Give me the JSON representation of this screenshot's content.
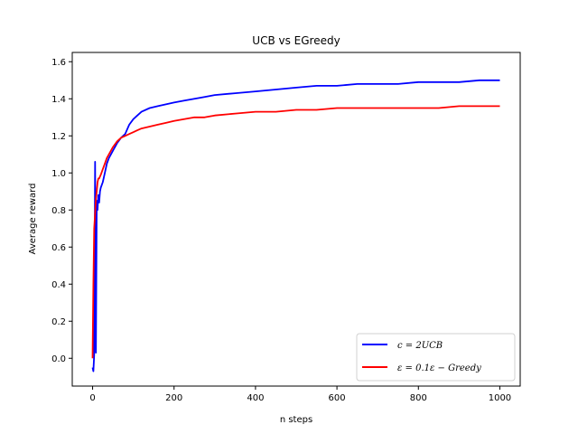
{
  "chart_data": {
    "type": "line",
    "title": "UCB vs EGreedy",
    "xlabel": "n steps",
    "ylabel": "Average reward",
    "xlim": [
      -50,
      1050
    ],
    "ylim": [
      -0.15,
      1.65
    ],
    "x_ticks": [
      0,
      200,
      400,
      600,
      800,
      1000
    ],
    "x_tick_labels": [
      "0",
      "200",
      "400",
      "600",
      "800",
      "1000"
    ],
    "y_ticks": [
      0.0,
      0.2,
      0.4,
      0.6,
      0.8,
      1.0,
      1.2,
      1.4,
      1.6
    ],
    "y_tick_labels": [
      "0.0",
      "0.2",
      "0.4",
      "0.6",
      "0.8",
      "1.0",
      "1.2",
      "1.4",
      "1.6"
    ],
    "grid": false,
    "legend_position": "lower-right",
    "series": [
      {
        "name": "c = 2 UCB",
        "legend_label": "c = 2UCB",
        "color": "#0000ff",
        "x": [
          0,
          2,
          4,
          6,
          8,
          10,
          12,
          14,
          16,
          18,
          20,
          25,
          30,
          35,
          40,
          50,
          60,
          70,
          80,
          90,
          100,
          110,
          120,
          140,
          160,
          180,
          200,
          225,
          250,
          275,
          300,
          350,
          400,
          450,
          500,
          550,
          600,
          650,
          700,
          750,
          800,
          850,
          900,
          950,
          1000
        ],
        "y": [
          -0.05,
          -0.07,
          0.02,
          1.06,
          0.03,
          0.85,
          0.8,
          0.88,
          0.84,
          0.9,
          0.92,
          0.95,
          1.0,
          1.05,
          1.08,
          1.12,
          1.16,
          1.19,
          1.21,
          1.26,
          1.29,
          1.31,
          1.33,
          1.35,
          1.36,
          1.37,
          1.38,
          1.39,
          1.4,
          1.41,
          1.42,
          1.43,
          1.44,
          1.45,
          1.46,
          1.47,
          1.47,
          1.48,
          1.48,
          1.48,
          1.49,
          1.49,
          1.49,
          1.5,
          1.5
        ]
      },
      {
        "name": "ε = 0.1 ε-Greedy",
        "legend_label": "ε = 0.1ε − Greedy",
        "color": "#ff0000",
        "x": [
          0,
          2,
          4,
          6,
          8,
          10,
          12,
          14,
          16,
          18,
          20,
          25,
          30,
          35,
          40,
          50,
          60,
          70,
          80,
          90,
          100,
          110,
          120,
          140,
          160,
          180,
          200,
          225,
          250,
          275,
          300,
          350,
          400,
          450,
          500,
          550,
          600,
          650,
          700,
          750,
          800,
          850,
          900,
          950,
          1000
        ],
        "y": [
          0.0,
          0.4,
          0.7,
          0.78,
          0.86,
          0.9,
          0.95,
          0.97,
          0.97,
          0.98,
          0.99,
          1.02,
          1.05,
          1.08,
          1.1,
          1.14,
          1.17,
          1.19,
          1.2,
          1.21,
          1.22,
          1.23,
          1.24,
          1.25,
          1.26,
          1.27,
          1.28,
          1.29,
          1.3,
          1.3,
          1.31,
          1.32,
          1.33,
          1.33,
          1.34,
          1.34,
          1.35,
          1.35,
          1.35,
          1.35,
          1.35,
          1.35,
          1.36,
          1.36,
          1.36
        ]
      }
    ]
  }
}
